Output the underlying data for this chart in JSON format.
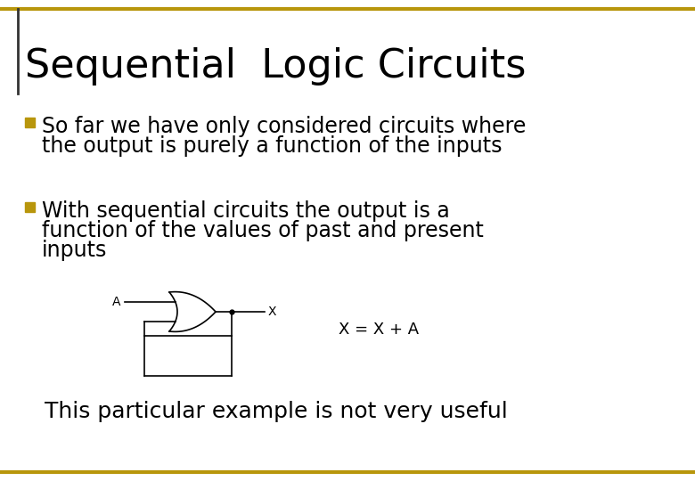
{
  "title": "Sequential  Logic Circuits",
  "title_fontsize": 32,
  "title_color": "#000000",
  "background_color": "#ffffff",
  "border_color": "#B8960C",
  "bullet_color": "#B8960C",
  "bullet1_line1": "So far we have only considered circuits where",
  "bullet1_line2": "the output is purely a function of the inputs",
  "bullet2_line1": "With sequential circuits the output is a",
  "bullet2_line2": "function of the values of past and present",
  "bullet2_line3": "inputs",
  "equation": "X = X + A",
  "footnote": "This particular example is not very useful",
  "text_fontsize": 17,
  "footnote_fontsize": 18,
  "equation_fontsize": 13,
  "label_A": "A",
  "label_X": "X"
}
